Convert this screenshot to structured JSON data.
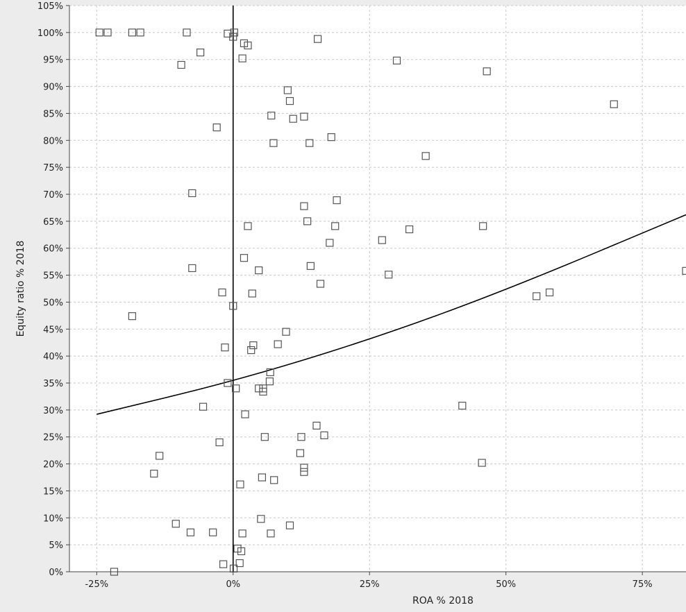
{
  "chart_data": {
    "type": "scatter",
    "title": "",
    "xlabel": "ROA % 2018",
    "ylabel": "Equity ratio % 2018",
    "xlim": [
      -30,
      83
    ],
    "ylim": [
      0,
      105
    ],
    "x_ticks": [
      -25,
      0,
      25,
      50,
      75
    ],
    "x_tick_labels": [
      "-25%",
      "0%",
      "25%",
      "50%",
      "75%"
    ],
    "y_ticks": [
      0,
      5,
      10,
      15,
      20,
      25,
      30,
      35,
      40,
      45,
      50,
      55,
      60,
      65,
      70,
      75,
      80,
      85,
      90,
      95,
      100,
      105
    ],
    "y_tick_labels": [
      "0%",
      "5%",
      "10%",
      "15%",
      "20%",
      "25%",
      "30%",
      "35%",
      "40%",
      "45%",
      "50%",
      "55%",
      "60%",
      "65%",
      "70%",
      "75%",
      "80%",
      "85%",
      "90%",
      "95%",
      "100%",
      "105%"
    ],
    "grid": true,
    "marker": "open-square",
    "colors": {
      "background": "#ffffff",
      "grid": "#c8c8c8",
      "marker": "#555555",
      "line": "#000000",
      "frame": "#ececec"
    },
    "points": [
      {
        "x": -24.5,
        "y": 100
      },
      {
        "x": -23.0,
        "y": 100
      },
      {
        "x": -18.5,
        "y": 100
      },
      {
        "x": -17.0,
        "y": 100
      },
      {
        "x": -8.5,
        "y": 100
      },
      {
        "x": -1.0,
        "y": 99.8
      },
      {
        "x": 0.2,
        "y": 100
      },
      {
        "x": 0.0,
        "y": 99.2
      },
      {
        "x": 2.0,
        "y": 98.0
      },
      {
        "x": 2.7,
        "y": 97.6
      },
      {
        "x": 15.5,
        "y": 98.8
      },
      {
        "x": 30.0,
        "y": 94.8
      },
      {
        "x": 46.5,
        "y": 92.8
      },
      {
        "x": -6.0,
        "y": 96.3
      },
      {
        "x": -9.5,
        "y": 94.0
      },
      {
        "x": 1.7,
        "y": 95.2
      },
      {
        "x": 10.0,
        "y": 89.3
      },
      {
        "x": 10.4,
        "y": 87.3
      },
      {
        "x": 69.8,
        "y": 86.7
      },
      {
        "x": 7.0,
        "y": 84.6
      },
      {
        "x": 11.0,
        "y": 84.0
      },
      {
        "x": 13.0,
        "y": 84.4
      },
      {
        "x": -3.0,
        "y": 82.4
      },
      {
        "x": 18.0,
        "y": 80.6
      },
      {
        "x": 7.4,
        "y": 79.5
      },
      {
        "x": 14.0,
        "y": 79.5
      },
      {
        "x": 35.3,
        "y": 77.1
      },
      {
        "x": -7.5,
        "y": 70.2
      },
      {
        "x": 19.0,
        "y": 68.9
      },
      {
        "x": 13.0,
        "y": 67.8
      },
      {
        "x": 13.6,
        "y": 65.0
      },
      {
        "x": 2.7,
        "y": 64.1
      },
      {
        "x": 18.7,
        "y": 64.1
      },
      {
        "x": 45.8,
        "y": 64.1
      },
      {
        "x": 32.3,
        "y": 63.5
      },
      {
        "x": 27.3,
        "y": 61.5
      },
      {
        "x": 17.7,
        "y": 61.0
      },
      {
        "x": 2.0,
        "y": 58.2
      },
      {
        "x": -7.5,
        "y": 56.3
      },
      {
        "x": 14.2,
        "y": 56.7
      },
      {
        "x": 4.7,
        "y": 55.9
      },
      {
        "x": 28.5,
        "y": 55.1
      },
      {
        "x": 83.0,
        "y": 55.8
      },
      {
        "x": 16.0,
        "y": 53.4
      },
      {
        "x": -2.0,
        "y": 51.8
      },
      {
        "x": 3.5,
        "y": 51.6
      },
      {
        "x": 55.6,
        "y": 51.1
      },
      {
        "x": 58.0,
        "y": 51.8
      },
      {
        "x": 0.0,
        "y": 49.3
      },
      {
        "x": -18.5,
        "y": 47.4
      },
      {
        "x": 9.7,
        "y": 44.5
      },
      {
        "x": -1.5,
        "y": 41.6
      },
      {
        "x": 3.7,
        "y": 42.0
      },
      {
        "x": 8.2,
        "y": 42.2
      },
      {
        "x": 3.3,
        "y": 41.1
      },
      {
        "x": 6.8,
        "y": 37.0
      },
      {
        "x": -1.0,
        "y": 35.0
      },
      {
        "x": 6.7,
        "y": 35.3
      },
      {
        "x": 0.5,
        "y": 34.0
      },
      {
        "x": 4.7,
        "y": 34.0
      },
      {
        "x": 5.5,
        "y": 34.0
      },
      {
        "x": 5.5,
        "y": 33.4
      },
      {
        "x": -5.5,
        "y": 30.6
      },
      {
        "x": 42.0,
        "y": 30.8
      },
      {
        "x": 2.2,
        "y": 29.2
      },
      {
        "x": 15.3,
        "y": 27.1
      },
      {
        "x": 5.8,
        "y": 25.0
      },
      {
        "x": 12.5,
        "y": 25.0
      },
      {
        "x": 16.7,
        "y": 25.3
      },
      {
        "x": -2.5,
        "y": 24.0
      },
      {
        "x": 12.3,
        "y": 22.0
      },
      {
        "x": -13.5,
        "y": 21.5
      },
      {
        "x": 45.6,
        "y": 20.2
      },
      {
        "x": 13.0,
        "y": 19.3
      },
      {
        "x": 13.0,
        "y": 18.5
      },
      {
        "x": -14.5,
        "y": 18.2
      },
      {
        "x": 5.3,
        "y": 17.5
      },
      {
        "x": 7.5,
        "y": 17.0
      },
      {
        "x": 1.3,
        "y": 16.2
      },
      {
        "x": -10.5,
        "y": 8.9
      },
      {
        "x": 5.1,
        "y": 9.8
      },
      {
        "x": 10.4,
        "y": 8.6
      },
      {
        "x": -7.8,
        "y": 7.3
      },
      {
        "x": -3.7,
        "y": 7.3
      },
      {
        "x": 1.7,
        "y": 7.1
      },
      {
        "x": 6.9,
        "y": 7.1
      },
      {
        "x": 0.8,
        "y": 4.3
      },
      {
        "x": 1.5,
        "y": 3.8
      },
      {
        "x": -1.8,
        "y": 1.4
      },
      {
        "x": 1.2,
        "y": 1.6
      },
      {
        "x": 0.1,
        "y": 0.6
      },
      {
        "x": -21.8,
        "y": 0.0
      }
    ],
    "trendline": {
      "type": "curve",
      "points": [
        [
          -25,
          29.2
        ],
        [
          0,
          35.3
        ],
        [
          25,
          43.0
        ],
        [
          50,
          52.2
        ],
        [
          83,
          66.2
        ]
      ]
    },
    "reference_line_x": 0
  }
}
